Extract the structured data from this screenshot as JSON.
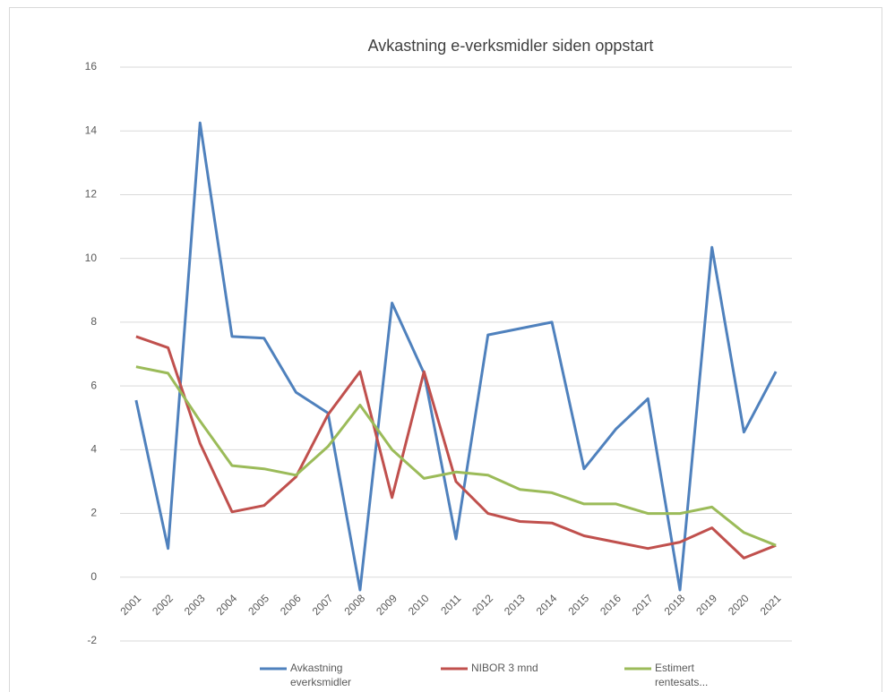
{
  "chart_data": {
    "type": "line",
    "title": "Avkastning e-verksmidler siden oppstart",
    "categories": [
      "2001",
      "2002",
      "2003",
      "2004",
      "2005",
      "2006",
      "2007",
      "2008",
      "2009",
      "2010",
      "2011",
      "2012",
      "2013",
      "2014",
      "2015",
      "2016",
      "2017",
      "2018",
      "2019",
      "2020",
      "2021"
    ],
    "series": [
      {
        "name": "Avkastning everksmidler",
        "color": "#4f81bd",
        "values": [
          5.55,
          0.9,
          14.25,
          7.55,
          7.5,
          5.8,
          5.15,
          -0.4,
          8.6,
          6.4,
          1.2,
          7.6,
          7.8,
          8.0,
          3.4,
          4.65,
          5.6,
          -0.4,
          10.35,
          4.55,
          6.45
        ]
      },
      {
        "name": "NIBOR 3 mnd",
        "color": "#c0504d",
        "values": [
          7.55,
          7.2,
          4.2,
          2.05,
          2.25,
          3.15,
          5.1,
          6.45,
          2.5,
          6.45,
          3.0,
          2.0,
          1.75,
          1.7,
          1.3,
          1.1,
          0.9,
          1.1,
          1.55,
          0.6,
          1.0
        ]
      },
      {
        "name": "Estimert rentesats...",
        "color": "#9bbb59",
        "values": [
          6.6,
          6.4,
          4.9,
          3.5,
          3.4,
          3.2,
          4.1,
          5.4,
          4.0,
          3.1,
          3.3,
          3.2,
          2.75,
          2.65,
          2.3,
          2.3,
          2.0,
          2.0,
          2.2,
          1.4,
          1.0
        ]
      }
    ],
    "ylim": [
      -2,
      16
    ],
    "yticks": [
      -2,
      0,
      2,
      4,
      6,
      8,
      10,
      12,
      14,
      16
    ],
    "grid": true,
    "legend": "bottom"
  }
}
